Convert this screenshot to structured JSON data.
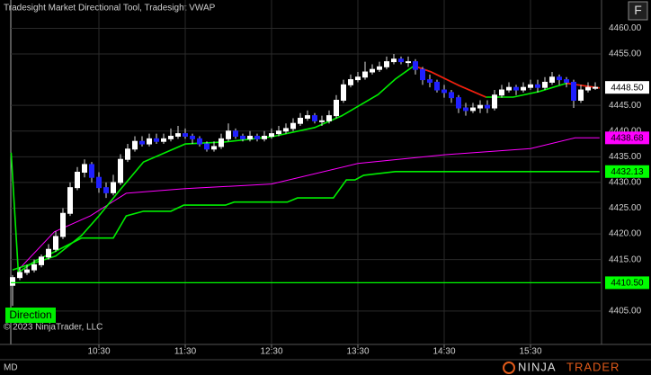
{
  "chart_data": {
    "type": "candlestick",
    "title": "Tradesight Market Directional Tool, Tradesight VWAP",
    "x": [
      570,
      575,
      580,
      585,
      590,
      595,
      600,
      605,
      610,
      615,
      620,
      625,
      630,
      635,
      640,
      645,
      650,
      655,
      660,
      665,
      670,
      675,
      680,
      685,
      690,
      695,
      700,
      705,
      710,
      715,
      720,
      725,
      730,
      735,
      740,
      745,
      750,
      755,
      760,
      765,
      770,
      775,
      780,
      785,
      790,
      795,
      800,
      805,
      810,
      815,
      820,
      825,
      830,
      835,
      840,
      845,
      850,
      855,
      860,
      865,
      870,
      875,
      880,
      885,
      890,
      895,
      900,
      905,
      910,
      915,
      920,
      925,
      930,
      935,
      940,
      945,
      950,
      955,
      960,
      965,
      970,
      975
    ],
    "open": [
      4410,
      4411.5,
      4412.5,
      4413,
      4414,
      4415.5,
      4417,
      4419.5,
      4424,
      4429,
      4432,
      4433.5,
      4431,
      4429,
      4428,
      4430,
      4434.5,
      4436.5,
      4438,
      4437.5,
      4438.5,
      4438,
      4438.5,
      4439,
      4439.5,
      4439,
      4438.5,
      4437.5,
      4436.5,
      4437,
      4438.5,
      4440,
      4439,
      4438.5,
      4439,
      4438.5,
      4439,
      4439.5,
      4440,
      4440.5,
      4441.5,
      4442.5,
      4443,
      4442,
      4442,
      4443,
      4446,
      4449,
      4450,
      4450.5,
      4451.5,
      4452,
      4452.5,
      4453.5,
      4454,
      4453.5,
      4453.5,
      4452,
      4450,
      4449.5,
      4448,
      4447.5,
      4446.5,
      4444.5,
      4444,
      4444.5,
      4445,
      4444.5,
      4447,
      4448,
      4448.5,
      4448,
      4448.5,
      4449,
      4448.5,
      4449.5,
      4450.5,
      4450,
      4449.5,
      4446,
      4448,
      4448.5
    ],
    "high": [
      4412,
      4413.5,
      4414,
      4415,
      4416,
      4418,
      4420.5,
      4425,
      4430,
      4433,
      4434.5,
      4434,
      4432,
      4430,
      4431.5,
      4435.5,
      4437.5,
      4439,
      4439,
      4439.5,
      4439.5,
      4439.5,
      4440.5,
      4441,
      4440.5,
      4439.5,
      4439,
      4438,
      4438,
      4439.5,
      4441.5,
      4440.5,
      4439.5,
      4440,
      4439.5,
      4440,
      4440.5,
      4441,
      4441.5,
      4442.5,
      4443.5,
      4444,
      4443.5,
      4443,
      4444,
      4447,
      4450,
      4451,
      4451.5,
      4453.5,
      4453,
      4453.5,
      4454.5,
      4455,
      4454.5,
      4454.5,
      4454,
      4452.5,
      4451,
      4450,
      4449,
      4448,
      4447,
      4445.5,
      4445.5,
      4446,
      4446,
      4448,
      4449,
      4449.5,
      4449,
      4449.5,
      4450,
      4450,
      4450.5,
      4451.5,
      4451,
      4450.5,
      4450,
      4449,
      4449.5,
      4449.5
    ],
    "low": [
      4406,
      4411,
      4412,
      4412.5,
      4413.5,
      4415,
      4416.5,
      4419,
      4423.5,
      4428.5,
      4431,
      4430,
      4428,
      4427,
      4427.5,
      4429.5,
      4434,
      4436,
      4437,
      4437,
      4437.5,
      4437.5,
      4438,
      4438.5,
      4438.5,
      4437.5,
      4437,
      4436,
      4436,
      4436.5,
      4438,
      4438.5,
      4438,
      4438,
      4438,
      4438,
      4438.5,
      4439,
      4439.5,
      4440,
      4441,
      4442,
      4441.5,
      4441,
      4441.5,
      4442.5,
      4445.5,
      4448.5,
      4449.5,
      4450,
      4451,
      4451.5,
      4452,
      4453,
      4453,
      4452.5,
      4451,
      4449,
      4448.5,
      4447.5,
      4446.5,
      4445.5,
      4443.5,
      4443,
      4443.5,
      4443.5,
      4443.5,
      4444,
      4446.5,
      4447.5,
      4447,
      4447.5,
      4448,
      4447.5,
      4448,
      4449,
      4449,
      4448.5,
      4444.5,
      4445.5,
      4447.5,
      4448
    ],
    "close": [
      4411.5,
      4412.5,
      4413,
      4414,
      4415.5,
      4417,
      4419.5,
      4424,
      4429,
      4432,
      4433.5,
      4431,
      4429,
      4428,
      4430,
      4434.5,
      4436.5,
      4438,
      4437.5,
      4438.5,
      4438,
      4438.5,
      4439,
      4439.5,
      4439,
      4438.5,
      4437.5,
      4436.5,
      4437,
      4438.5,
      4440,
      4439,
      4438.5,
      4439,
      4438.5,
      4439,
      4439.5,
      4440,
      4440.5,
      4441.5,
      4442.5,
      4443,
      4442,
      4442,
      4443,
      4446,
      4449,
      4450,
      4450.5,
      4451.5,
      4452,
      4452.5,
      4453.5,
      4454,
      4453.5,
      4453.5,
      4452,
      4450,
      4449.5,
      4448,
      4447.5,
      4446.5,
      4444.5,
      4444,
      4444.5,
      4445,
      4444.5,
      4447,
      4448,
      4448.5,
      4448,
      4448.5,
      4449,
      4448.5,
      4449.5,
      4450.5,
      4450,
      4449.5,
      4446,
      4448,
      4448.5,
      4448.5
    ],
    "up_color": "#ffffff",
    "down_color": "#2020ff",
    "lines": [
      {
        "color": "#ff00ff",
        "x": [
          574,
          599,
          624,
          649,
          690,
          750,
          810,
          870,
          930,
          961,
          978
        ],
        "values": [
          4413,
          4420.4,
          4423.5,
          4427.9,
          4428.8,
          4429.7,
          4433.7,
          4435.4,
          4436.6,
          4438.68,
          4438.68
        ]
      },
      {
        "color": "#00ee00",
        "x": [
          569,
          574,
          586,
          599,
          618,
          640,
          649,
          661,
          680,
          689,
          718,
          724,
          761,
          768,
          793,
          802,
          808,
          814,
          836,
          978
        ],
        "values": [
          4435.8,
          4412.5,
          4414.8,
          4416.5,
          4419.2,
          4419.2,
          4423.5,
          4424.4,
          4424.4,
          4425.6,
          4425.6,
          4426.2,
          4426.2,
          4427,
          4427,
          4430.5,
          4430.5,
          4431.4,
          4432.13,
          4432.13
        ]
      },
      {
        "color": "#00ee00",
        "x": [
          570,
          600,
          618,
          630,
          643,
          661,
          690,
          718,
          750,
          780,
          799,
          824,
          836,
          849,
          861,
          880,
          899,
          918,
          936,
          955,
          978
        ],
        "values": [
          4413,
          4415.7,
          4419.7,
          4423.5,
          4428,
          4434,
          4437.5,
          4437.9,
          4438.9,
          4440.7,
          4443,
          4447.1,
          4450.1,
          4452.7,
          4451.5,
          4448.9,
          4446.6,
          4446.6,
          4447.7,
          4449.3,
          4448.4
        ]
      },
      {
        "color": "#ff1010",
        "x": [
          849,
          861,
          880,
          899,
          920,
          955,
          978
        ],
        "values": [
          4452.7,
          4451.5,
          4448.9,
          4446.6,
          null,
          4449.3,
          4448.4
        ]
      }
    ],
    "markers": [
      {
        "value": 4448.5,
        "label": "4448.50",
        "color": "#ffffff",
        "line": false
      },
      {
        "value": 4438.68,
        "label": "4438.68",
        "color": "#ff00ff",
        "line": false
      },
      {
        "value": 4432.13,
        "label": "4432.13",
        "color": "#00ff00",
        "line": false
      },
      {
        "value": 4410.5,
        "label": "4410.50",
        "color": "#00ff00",
        "line": true
      }
    ],
    "xlim": [
      568.75,
      978.75
    ],
    "xticks": [
      {
        "value": 630,
        "label": "10:30"
      },
      {
        "value": 690,
        "label": "11:30"
      },
      {
        "value": 750,
        "label": "12:30"
      },
      {
        "value": 810,
        "label": "13:30"
      },
      {
        "value": 870,
        "label": "14:30"
      },
      {
        "value": 930,
        "label": "15:30"
      }
    ],
    "ylim": [
      4398.5,
      4465.5
    ],
    "yticks": [
      {
        "value": 4405,
        "label": "4405.00"
      },
      {
        "value": 4415,
        "label": "4415.00"
      },
      {
        "value": 4420,
        "label": "4420.00"
      },
      {
        "value": 4425,
        "label": "4425.00"
      },
      {
        "value": 4430,
        "label": "4430.00"
      },
      {
        "value": 4435,
        "label": "4435.00"
      },
      {
        "value": 4440,
        "label": "4440.00"
      },
      {
        "value": 4445,
        "label": "4445.00"
      },
      {
        "value": 4455,
        "label": "4455.00"
      },
      {
        "value": 4460,
        "label": "4460.00"
      }
    ],
    "grid": true,
    "button": "F",
    "indicator_label": "Direction",
    "instrument": "MD",
    "copyright": "© 2023 NinjaTrader, LLC",
    "logo": [
      "NINJA",
      "TRADER"
    ]
  }
}
